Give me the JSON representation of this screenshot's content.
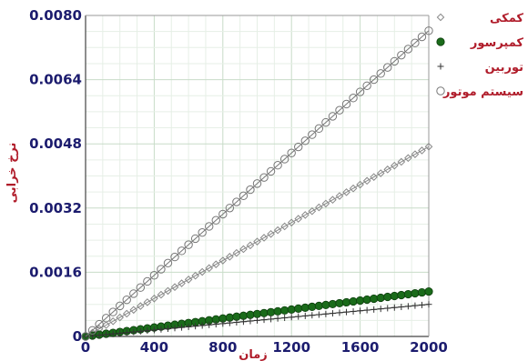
{
  "chart_data": {
    "type": "line",
    "xlabel": "زمان",
    "ylabel": "نرخ خرابی",
    "xlim": [
      0,
      2000
    ],
    "ylim": [
      0,
      0.008
    ],
    "x_ticks": [
      "0",
      "400",
      "800",
      "1200",
      "1600",
      "2000"
    ],
    "y_ticks": [
      "0",
      "0.0016",
      "0.0032",
      "0.0048",
      "0.0064",
      "0.0080"
    ],
    "grid": true,
    "legend_position": "right",
    "x": [
      0,
      2000
    ],
    "series": [
      {
        "name": "کمکی",
        "marker": "diamond-open",
        "color": "#888888",
        "values": [
          0,
          0.00473
        ]
      },
      {
        "name": "کمپرسور",
        "marker": "circle-filled",
        "color": "#1a6b1a",
        "values": [
          0,
          0.00112
        ]
      },
      {
        "name": "توربین",
        "marker": "plus",
        "color": "#333333",
        "values": [
          0,
          0.0008
        ]
      },
      {
        "name": "سیستم موتور",
        "marker": "circle-open",
        "color": "#777777",
        "values": [
          0,
          0.00762
        ]
      }
    ]
  }
}
